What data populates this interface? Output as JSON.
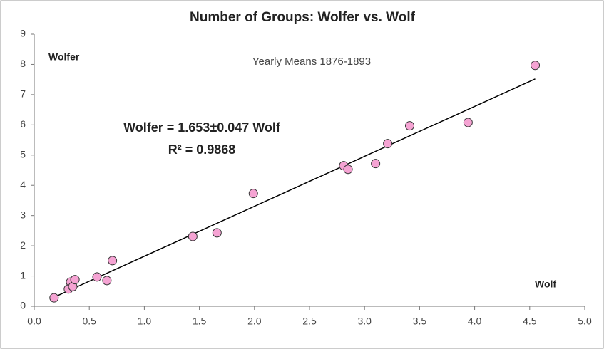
{
  "chart_data": {
    "type": "scatter",
    "title": "Number of Groups: Wolfer vs. Wolf",
    "subtitle": "Yearly Means 1876-1893",
    "x_label": "Wolf",
    "y_label": "Wolfer",
    "annotations": [
      "Wolfer = 1.653±0.047 Wolf",
      "R² = 0.9868"
    ],
    "series": [
      {
        "name": "Wolfer",
        "color": "#f5a3d3",
        "x": [
          0.18,
          0.31,
          0.33,
          0.35,
          0.37,
          0.57,
          0.66,
          0.71,
          1.44,
          1.66,
          1.99,
          2.81,
          2.85,
          3.1,
          3.21,
          3.41,
          3.94,
          4.55
        ],
        "values": [
          0.28,
          0.57,
          0.8,
          0.65,
          0.88,
          0.97,
          0.85,
          1.51,
          2.31,
          2.43,
          3.73,
          4.65,
          4.53,
          4.72,
          5.38,
          5.97,
          6.08,
          7.97
        ]
      }
    ],
    "trendline": {
      "color": "#000000",
      "x": [
        0.18,
        4.55
      ],
      "values": [
        0.3,
        7.52
      ]
    },
    "xlim": [
      0,
      5
    ],
    "ylim": [
      0,
      9
    ],
    "xticks": [
      {
        "value": 0,
        "label": "0.0"
      },
      {
        "value": 0.5,
        "label": "0.5"
      },
      {
        "value": 1,
        "label": "1.0"
      },
      {
        "value": 1.5,
        "label": "1.5"
      },
      {
        "value": 2,
        "label": "2.0"
      },
      {
        "value": 2.5,
        "label": "2.5"
      },
      {
        "value": 3,
        "label": "3.0"
      },
      {
        "value": 3.5,
        "label": "3.5"
      },
      {
        "value": 4,
        "label": "4.0"
      },
      {
        "value": 4.5,
        "label": "4.5"
      },
      {
        "value": 5,
        "label": "5.0"
      }
    ],
    "yticks": [
      0,
      1,
      2,
      3,
      4,
      5,
      6,
      7,
      8,
      9
    ],
    "grid": false
  }
}
